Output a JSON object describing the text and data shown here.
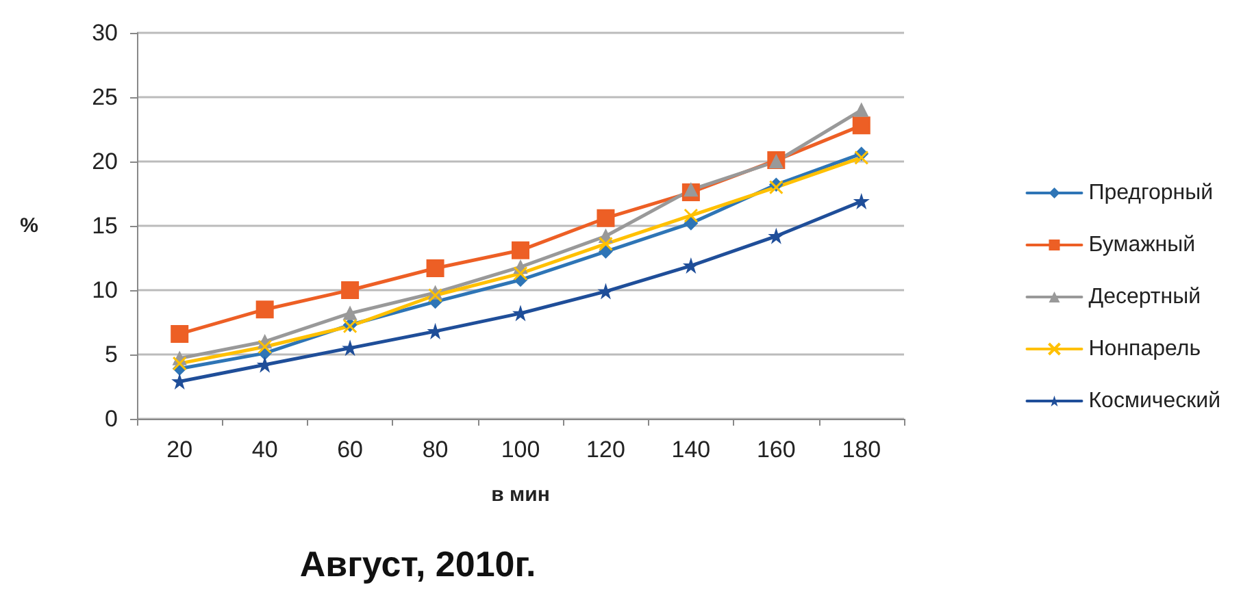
{
  "chart_data": {
    "type": "line",
    "title": "Август, 2010г.",
    "xlabel": "в мин",
    "ylabel": "%",
    "categories": [
      "20",
      "40",
      "60",
      "80",
      "100",
      "120",
      "140",
      "160",
      "180"
    ],
    "series": [
      {
        "name": "Предгорный",
        "color": "#2e75b6",
        "marker": "diamond",
        "values": [
          3.9,
          5.1,
          7.3,
          9.1,
          10.8,
          13.0,
          15.2,
          18.2,
          20.6
        ]
      },
      {
        "name": "Бумажный",
        "color": "#ed5f25",
        "marker": "square",
        "values": [
          6.6,
          8.5,
          10.0,
          11.7,
          13.1,
          15.6,
          17.6,
          20.1,
          22.8
        ]
      },
      {
        "name": "Десертный",
        "color": "#999999",
        "marker": "triangle",
        "values": [
          4.7,
          6.0,
          8.2,
          9.8,
          11.8,
          14.2,
          17.8,
          20.0,
          24.0
        ]
      },
      {
        "name": "Нонпарель",
        "color": "#ffc000",
        "marker": "cross",
        "values": [
          4.3,
          5.6,
          7.2,
          9.6,
          11.3,
          13.6,
          15.8,
          18.0,
          20.3
        ]
      },
      {
        "name": "Космический",
        "color": "#1f4e99",
        "marker": "star",
        "values": [
          2.9,
          4.2,
          5.5,
          6.8,
          8.2,
          9.9,
          11.9,
          14.2,
          16.9
        ]
      }
    ],
    "ylim": [
      0,
      30
    ],
    "yticks": [
      0,
      5,
      10,
      15,
      20,
      25,
      30
    ],
    "grid": "y",
    "legend": "right"
  }
}
